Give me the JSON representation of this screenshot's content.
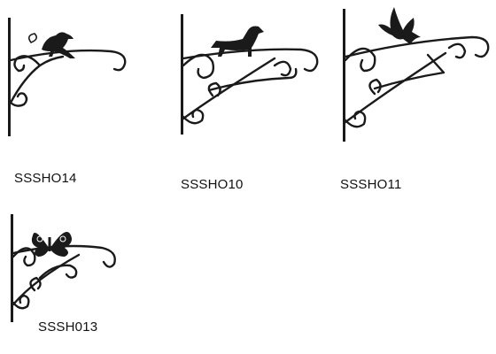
{
  "products": [
    {
      "code": "SSSHO14",
      "motif": "bird-perched-icon"
    },
    {
      "code": "SSSHO10",
      "motif": "dog-icon"
    },
    {
      "code": "SSSHO11",
      "motif": "dove-icon"
    },
    {
      "code": "SSSH013",
      "motif": "butterfly-icon"
    }
  ],
  "colors": {
    "iron": "#1a1a1a",
    "background": "#ffffff",
    "text": "#111111"
  }
}
